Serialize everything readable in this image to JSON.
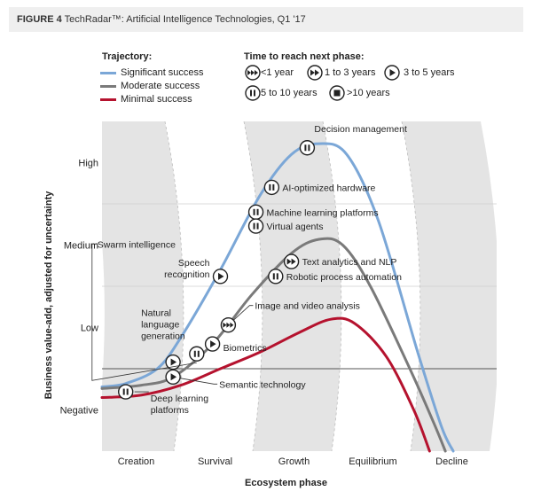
{
  "figure": {
    "label": "FIGURE 4",
    "title": "TechRadar™: Artificial Intelligence Technologies, Q1 '17"
  },
  "legend": {
    "trajectory_title": "Trajectory:",
    "trajectories": [
      {
        "label": "Significant success",
        "color": "#7ba7d7"
      },
      {
        "label": "Moderate success",
        "color": "#7a7a7a"
      },
      {
        "label": "Minimal success",
        "color": "#b5122e"
      }
    ],
    "time_title": "Time to reach next phase:",
    "time_items": [
      {
        "icon": "fast-forward-icon",
        "label": "<1 year"
      },
      {
        "icon": "double-play-icon",
        "label": "1 to 3 years"
      },
      {
        "icon": "play-icon",
        "label": "3 to 5 years"
      },
      {
        "icon": "pause-icon",
        "label": "5 to 10 years"
      },
      {
        "icon": "stop-icon",
        "label": ">10 years"
      }
    ]
  },
  "chart_data": {
    "type": "line",
    "title": "TechRadar™: Artificial Intelligence Technologies, Q1 '17",
    "xlabel": "Ecosystem phase",
    "ylabel": "Business value-add, adjusted for uncertainty",
    "x_categories": [
      "Creation",
      "Survival",
      "Growth",
      "Equilibrium",
      "Decline"
    ],
    "y_categories": [
      "Negative",
      "Low",
      "Medium",
      "High"
    ],
    "xlim": [
      0,
      5
    ],
    "ylim": [
      0,
      4
    ],
    "series": [
      {
        "name": "Significant success",
        "color": "#7ba7d7",
        "points": [
          [
            0,
            0.78
          ],
          [
            0.3,
            0.82
          ],
          [
            0.7,
            1.0
          ],
          [
            1.0,
            1.38
          ],
          [
            1.5,
            2.2
          ],
          [
            2.0,
            3.1
          ],
          [
            2.4,
            3.6
          ],
          [
            2.75,
            3.73
          ],
          [
            3.1,
            3.6
          ],
          [
            3.5,
            2.8
          ],
          [
            4.0,
            1.2
          ],
          [
            4.3,
            0.3
          ],
          [
            4.45,
            0.0
          ]
        ]
      },
      {
        "name": "Moderate success",
        "color": "#7a7a7a",
        "points": [
          [
            0,
            0.76
          ],
          [
            0.5,
            0.8
          ],
          [
            0.9,
            0.9
          ],
          [
            1.4,
            1.3
          ],
          [
            1.9,
            1.9
          ],
          [
            2.4,
            2.4
          ],
          [
            2.75,
            2.57
          ],
          [
            3.05,
            2.5
          ],
          [
            3.4,
            2.0
          ],
          [
            3.9,
            1.0
          ],
          [
            4.2,
            0.35
          ],
          [
            4.35,
            0.0
          ]
        ]
      },
      {
        "name": "Minimal success",
        "color": "#b5122e",
        "points": [
          [
            0,
            0.65
          ],
          [
            0.5,
            0.68
          ],
          [
            1.0,
            0.8
          ],
          [
            1.5,
            1.0
          ],
          [
            2.0,
            1.2
          ],
          [
            2.5,
            1.44
          ],
          [
            2.9,
            1.6
          ],
          [
            3.2,
            1.55
          ],
          [
            3.6,
            1.15
          ],
          [
            3.95,
            0.5
          ],
          [
            4.15,
            0.0
          ]
        ]
      }
    ],
    "technologies": [
      {
        "name": "Decision management",
        "x": 2.6,
        "y": 3.68,
        "icon": "pause-icon"
      },
      {
        "name": "AI-optimized hardware",
        "x": 2.15,
        "y": 3.2,
        "icon": "pause-icon"
      },
      {
        "name": "Machine learning platforms",
        "x": 1.95,
        "y": 2.9,
        "icon": "pause-icon"
      },
      {
        "name": "Virtual agents",
        "x": 1.95,
        "y": 2.73,
        "icon": "pause-icon"
      },
      {
        "name": "Text analytics and NLP",
        "x": 2.4,
        "y": 2.3,
        "icon": "double-play-icon"
      },
      {
        "name": "Robotic process automation",
        "x": 2.2,
        "y": 2.12,
        "icon": "pause-icon"
      },
      {
        "name": "Speech recognition",
        "x": 1.5,
        "y": 2.12,
        "icon": "play-icon"
      },
      {
        "name": "Image and video analysis",
        "x": 1.6,
        "y": 1.53,
        "icon": "fast-forward-icon"
      },
      {
        "name": "Biometrics",
        "x": 1.4,
        "y": 1.3,
        "icon": "play-icon"
      },
      {
        "name": "Natural language generation",
        "x": 0.9,
        "y": 1.08,
        "icon": "play-icon"
      },
      {
        "name": "Semantic technology",
        "x": 0.9,
        "y": 0.9,
        "icon": "play-icon"
      },
      {
        "name": "Swarm intelligence",
        "x": 1.2,
        "y": 1.18,
        "icon": "pause-icon"
      },
      {
        "name": "Deep learning platforms",
        "x": 0.3,
        "y": 0.72,
        "icon": "pause-icon"
      }
    ]
  }
}
